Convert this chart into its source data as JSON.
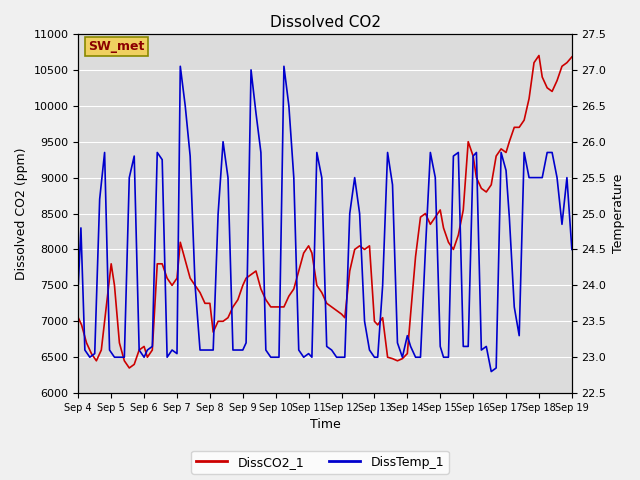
{
  "title": "Dissolved CO2",
  "xlabel": "Time",
  "ylabel_left": "Dissolved CO2 (ppm)",
  "ylabel_right": "Temperature",
  "ylim_left": [
    6000,
    11000
  ],
  "ylim_right": [
    22.5,
    27.5
  ],
  "xtick_labels": [
    "Sep 4",
    "Sep 5",
    "Sep 6",
    "Sep 7",
    "Sep 8",
    "Sep 9",
    "Sep 10",
    "Sep 11",
    "Sep 12",
    "Sep 13",
    "Sep 14",
    "Sep 15",
    "Sep 16",
    "Sep 17",
    "Sep 18",
    "Sep 19"
  ],
  "bg_color": "#dcdcdc",
  "fig_color": "#f0f0f0",
  "station_label": "SW_met",
  "legend_labels": [
    "DissCO2_1",
    "DissTemp_1"
  ],
  "line_colors": [
    "#cc0000",
    "#0000cc"
  ],
  "co2_x": [
    0,
    0.1,
    0.25,
    0.4,
    0.55,
    0.7,
    0.85,
    1.0,
    1.1,
    1.25,
    1.4,
    1.55,
    1.7,
    1.85,
    2.0,
    2.1,
    2.25,
    2.4,
    2.55,
    2.7,
    2.85,
    3.0,
    3.1,
    3.25,
    3.4,
    3.55,
    3.7,
    3.85,
    4.0,
    4.1,
    4.25,
    4.4,
    4.55,
    4.7,
    4.85,
    5.0,
    5.1,
    5.25,
    5.4,
    5.55,
    5.7,
    5.85,
    6.0,
    6.1,
    6.25,
    6.4,
    6.55,
    6.7,
    6.85,
    7.0,
    7.1,
    7.25,
    7.4,
    7.55,
    7.7,
    7.85,
    8.0,
    8.1,
    8.25,
    8.4,
    8.55,
    8.7,
    8.85,
    9.0,
    9.1,
    9.25,
    9.4,
    9.55,
    9.7,
    9.85,
    10.0,
    10.1,
    10.25,
    10.4,
    10.55,
    10.7,
    10.85,
    11.0,
    11.1,
    11.25,
    11.4,
    11.55,
    11.7,
    11.85,
    12.0,
    12.1,
    12.25,
    12.4,
    12.55,
    12.7,
    12.85,
    13.0,
    13.1,
    13.25,
    13.4,
    13.55,
    13.7,
    13.85,
    14.0,
    14.1,
    14.25,
    14.4,
    14.55,
    14.7,
    14.85,
    15.0
  ],
  "co2_y": [
    7050,
    6950,
    6700,
    6550,
    6450,
    6600,
    7200,
    7800,
    7500,
    6700,
    6450,
    6350,
    6400,
    6600,
    6650,
    6500,
    6600,
    7800,
    7800,
    7600,
    7500,
    7600,
    8100,
    7850,
    7600,
    7500,
    7400,
    7250,
    7250,
    6850,
    7000,
    7000,
    7050,
    7200,
    7300,
    7500,
    7600,
    7650,
    7700,
    7450,
    7300,
    7200,
    7200,
    7200,
    7200,
    7350,
    7450,
    7700,
    7950,
    8050,
    7950,
    7500,
    7400,
    7250,
    7200,
    7150,
    7100,
    7050,
    7700,
    8000,
    8050,
    8000,
    8050,
    7000,
    6950,
    7050,
    6500,
    6480,
    6450,
    6480,
    6550,
    7100,
    7900,
    8450,
    8500,
    8350,
    8450,
    8550,
    8300,
    8100,
    8000,
    8200,
    8550,
    9500,
    9300,
    9000,
    8850,
    8800,
    8900,
    9300,
    9400,
    9350,
    9500,
    9700,
    9700,
    9800,
    10100,
    10600,
    10700,
    10400,
    10250,
    10200,
    10350,
    10550,
    10600,
    10680
  ],
  "temp_x": [
    0,
    0.08,
    0.2,
    0.35,
    0.5,
    0.65,
    0.8,
    0.95,
    1.1,
    1.25,
    1.4,
    1.55,
    1.7,
    1.85,
    2.0,
    2.1,
    2.25,
    2.4,
    2.55,
    2.7,
    2.85,
    3.0,
    3.1,
    3.25,
    3.4,
    3.55,
    3.7,
    3.85,
    4.0,
    4.1,
    4.25,
    4.4,
    4.55,
    4.7,
    4.85,
    5.0,
    5.1,
    5.25,
    5.4,
    5.55,
    5.7,
    5.85,
    6.0,
    6.1,
    6.25,
    6.4,
    6.55,
    6.7,
    6.85,
    7.0,
    7.1,
    7.25,
    7.4,
    7.55,
    7.7,
    7.85,
    8.0,
    8.1,
    8.25,
    8.4,
    8.55,
    8.7,
    8.85,
    9.0,
    9.1,
    9.25,
    9.4,
    9.55,
    9.7,
    9.85,
    10.0,
    10.1,
    10.25,
    10.4,
    10.55,
    10.7,
    10.85,
    11.0,
    11.1,
    11.25,
    11.4,
    11.55,
    11.7,
    11.85,
    12.0,
    12.1,
    12.25,
    12.4,
    12.55,
    12.7,
    12.85,
    13.0,
    13.1,
    13.25,
    13.4,
    13.55,
    13.7,
    13.85,
    14.0,
    14.1,
    14.25,
    14.4,
    14.55,
    14.7,
    14.85,
    15.0
  ],
  "temp_y": [
    24.0,
    24.8,
    23.1,
    23.0,
    23.05,
    25.2,
    25.85,
    23.1,
    23.0,
    23.0,
    23.0,
    25.5,
    25.8,
    23.1,
    23.0,
    23.1,
    23.15,
    25.85,
    25.75,
    23.0,
    23.1,
    23.05,
    27.05,
    26.5,
    25.8,
    24.0,
    23.1,
    23.1,
    23.1,
    23.1,
    25.0,
    26.0,
    25.5,
    23.1,
    23.1,
    23.1,
    23.2,
    27.0,
    26.4,
    25.85,
    23.1,
    23.0,
    23.0,
    23.0,
    27.05,
    26.5,
    25.5,
    23.1,
    23.0,
    23.05,
    23.0,
    25.85,
    25.5,
    23.15,
    23.1,
    23.0,
    23.0,
    23.0,
    25.0,
    25.5,
    25.0,
    23.5,
    23.1,
    23.0,
    23.0,
    24.0,
    25.85,
    25.4,
    23.2,
    23.0,
    23.3,
    23.15,
    23.0,
    23.0,
    24.5,
    25.85,
    25.5,
    23.15,
    23.0,
    23.0,
    25.8,
    25.85,
    23.15,
    23.15,
    25.8,
    25.85,
    23.1,
    23.15,
    22.8,
    22.85,
    25.85,
    25.6,
    24.95,
    23.7,
    23.3,
    25.85,
    25.5,
    25.5,
    25.5,
    25.5,
    25.85,
    25.85,
    25.5,
    24.85,
    25.5,
    24.5
  ]
}
